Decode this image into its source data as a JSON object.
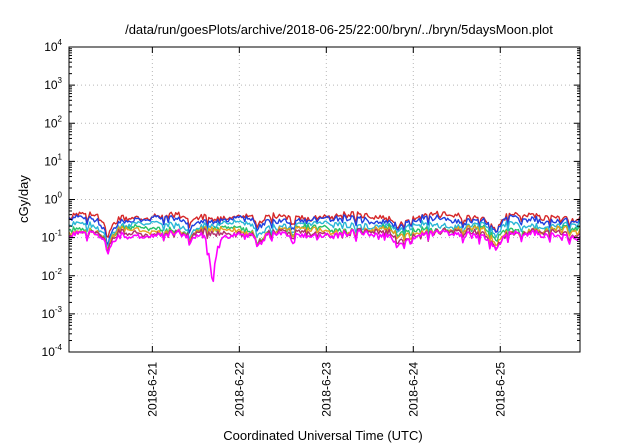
{
  "chart_data": {
    "type": "line",
    "title": "/data/run/goesPlots/archive/2018-06-25/22:00/bryn/../bryn/5daysMoon.plot",
    "xlabel": "Coordinated Universal Time (UTC)",
    "ylabel": "cGy/day",
    "yscale": "log",
    "ylim": [
      0.0001,
      10000
    ],
    "y_ticks": [
      {
        "base": "10",
        "exp": "-4",
        "value": 0.0001
      },
      {
        "base": "10",
        "exp": "-3",
        "value": 0.001
      },
      {
        "base": "10",
        "exp": "-2",
        "value": 0.01
      },
      {
        "base": "10",
        "exp": "-1",
        "value": 0.1
      },
      {
        "base": "10",
        "exp": "0",
        "value": 1
      },
      {
        "base": "10",
        "exp": "1",
        "value": 10
      },
      {
        "base": "10",
        "exp": "2",
        "value": 100
      },
      {
        "base": "10",
        "exp": "3",
        "value": 1000
      },
      {
        "base": "10",
        "exp": "4",
        "value": 10000
      }
    ],
    "xlim": [
      "2018-06-20T01:00",
      "2018-06-25T22:00"
    ],
    "x_ticks": [
      "2018-6-21",
      "2018-6-22",
      "2018-6-23",
      "2018-6-24",
      "2018-6-25"
    ],
    "grid": true,
    "series": [
      {
        "color": "#d62728",
        "level": 0.36,
        "dips": [
          [
            0.45,
            0.25
          ],
          [
            1.4,
            0.7
          ],
          [
            2.2,
            0.55
          ],
          [
            3.8,
            0.6
          ],
          [
            4.9,
            0.45
          ]
        ]
      },
      {
        "color": "#1f3fdf",
        "level": 0.3,
        "dips": [
          [
            0.45,
            0.25
          ],
          [
            1.4,
            0.7
          ],
          [
            2.2,
            0.55
          ],
          [
            3.8,
            0.6
          ],
          [
            4.9,
            0.45
          ]
        ]
      },
      {
        "color": "#29b6d6",
        "level": 0.22,
        "dips": [
          [
            0.45,
            0.3
          ],
          [
            1.4,
            0.7
          ],
          [
            2.2,
            0.55
          ],
          [
            3.8,
            0.6
          ],
          [
            4.9,
            0.45
          ]
        ]
      },
      {
        "color": "#27c26a",
        "level": 0.17,
        "dips": [
          [
            0.45,
            0.3
          ],
          [
            1.4,
            0.7
          ],
          [
            2.2,
            0.55
          ],
          [
            3.8,
            0.6
          ],
          [
            4.9,
            0.45
          ]
        ]
      },
      {
        "color": "#e8a020",
        "level": 0.155,
        "dips": [
          [
            0.45,
            0.3
          ],
          [
            1.4,
            0.7
          ],
          [
            2.2,
            0.55
          ],
          [
            3.8,
            0.6
          ],
          [
            4.9,
            0.45
          ]
        ]
      },
      {
        "color": "#b0306a",
        "level": 0.135,
        "dips": [
          [
            0.45,
            0.3
          ],
          [
            1.4,
            0.7
          ],
          [
            2.2,
            0.55
          ],
          [
            3.8,
            0.6
          ],
          [
            4.9,
            0.45
          ]
        ]
      },
      {
        "color": "#ff00ff",
        "level": 0.12,
        "dips": [
          [
            0.45,
            0.3
          ],
          [
            1.4,
            0.7
          ],
          [
            1.65,
            0.003
          ],
          [
            2.2,
            0.5
          ],
          [
            3.8,
            0.55
          ],
          [
            4.9,
            0.45
          ]
        ]
      }
    ]
  }
}
